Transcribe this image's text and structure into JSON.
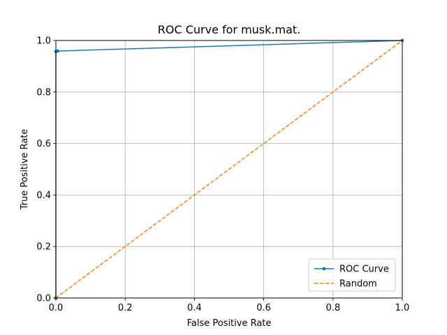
{
  "chart_data": {
    "type": "line",
    "title": "ROC Curve for musk.mat.",
    "xlabel": "False Positive Rate",
    "ylabel": "True Positive Rate",
    "xlim": [
      0.0,
      1.0
    ],
    "ylim": [
      0.0,
      1.0
    ],
    "xticks": [
      "0.0",
      "0.2",
      "0.4",
      "0.6",
      "0.8",
      "1.0"
    ],
    "yticks": [
      "0.0",
      "0.2",
      "0.4",
      "0.6",
      "0.8",
      "1.0"
    ],
    "grid": true,
    "legend_position": "lower-right",
    "series": [
      {
        "name": "ROC Curve",
        "color": "#1f77b4",
        "style": "solid",
        "marker": "circle",
        "x": [
          0.0,
          0.0,
          0.0052,
          1.0
        ],
        "y": [
          0.0,
          0.957,
          0.959,
          1.0
        ]
      },
      {
        "name": "Random",
        "color": "#ff7f0e",
        "style": "dashed",
        "marker": "none",
        "x": [
          0.0,
          1.0
        ],
        "y": [
          0.0,
          1.0
        ]
      }
    ]
  }
}
